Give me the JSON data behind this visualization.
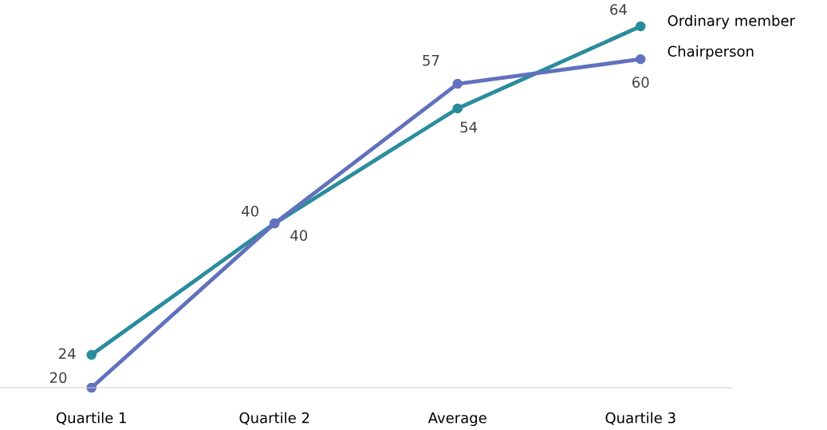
{
  "chart_data": {
    "type": "line",
    "categories": [
      "Quartile 1",
      "Quartile 2",
      "Average",
      "Quartile 3"
    ],
    "series": [
      {
        "name": "Ordinary member",
        "color": "#2a8c9c",
        "values": [
          24,
          40,
          54,
          64
        ]
      },
      {
        "name": "Chairperson",
        "color": "#6171bd",
        "values": [
          20,
          40,
          57,
          60
        ]
      }
    ],
    "tick_labels": "x",
    "data_labels": true,
    "legend": false,
    "grid": false,
    "marker": "circle",
    "line_style": "solid"
  }
}
